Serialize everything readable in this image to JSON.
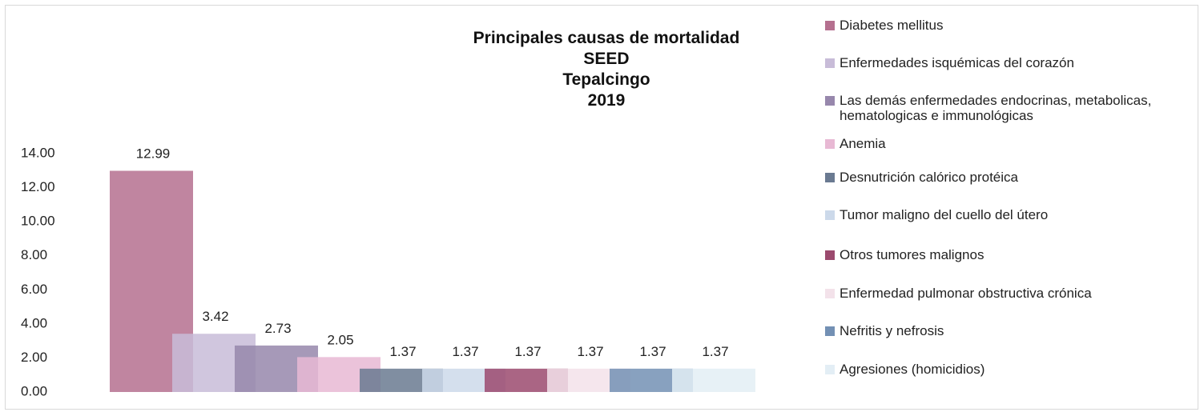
{
  "chart_data": {
    "type": "bar",
    "title": [
      "Principales causas de mortalidad",
      "SEED",
      "Tepalcingo",
      "2019"
    ],
    "series": [
      {
        "name": "Diabetes mellitus",
        "color": "#b5708f",
        "values": [
          12.99
        ]
      },
      {
        "name": "Enfermedades isquémicas del corazón",
        "color": "#c8bcd8",
        "values": [
          3.42
        ]
      },
      {
        "name": "Las demás enfermedades endocrinas, metabolicas, hematologicas e immunológicas",
        "color": "#9787ac",
        "values": [
          2.73
        ]
      },
      {
        "name": "Anemia",
        "color": "#e8b9d4",
        "values": [
          2.05
        ]
      },
      {
        "name": "Desnutrición calórico protéica",
        "color": "#6a7a91",
        "values": [
          1.37
        ]
      },
      {
        "name": "Tumor maligno del cuello del útero",
        "color": "#ccd9ea",
        "values": [
          1.37
        ]
      },
      {
        "name": "Otros tumores malignos",
        "color": "#9b4a6e",
        "values": [
          1.37
        ]
      },
      {
        "name": "Enfermedad pulmonar obstructiva crónica",
        "color": "#f3e2ea",
        "values": [
          1.37
        ]
      },
      {
        "name": "Nefritis y nefrosis",
        "color": "#7390b4",
        "values": [
          1.37
        ]
      },
      {
        "name": "Agresiones (homicidios)",
        "color": "#e3eef5",
        "values": [
          1.37
        ]
      }
    ],
    "ylim": [
      0,
      14
    ],
    "yticks": [
      {
        "value": 0,
        "label": "0.00"
      },
      {
        "value": 2,
        "label": "2.00"
      },
      {
        "value": 4,
        "label": "4.00"
      },
      {
        "value": 6,
        "label": "6.00"
      },
      {
        "value": 8,
        "label": "8.00"
      },
      {
        "value": 10,
        "label": "10.00"
      },
      {
        "value": 12,
        "label": "12.00"
      },
      {
        "value": 14,
        "label": "14.00"
      }
    ],
    "grid": false,
    "legend": "right"
  }
}
